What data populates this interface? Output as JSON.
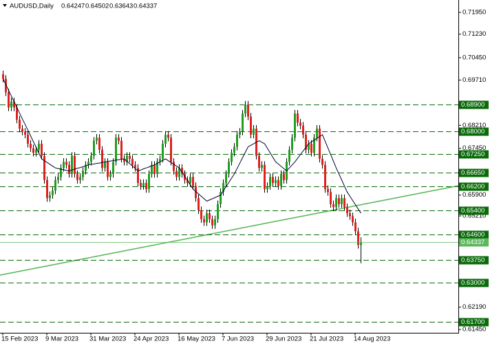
{
  "chart_data": {
    "type": "candlestick",
    "title": "AUDUSD,Daily",
    "categories": [
      "15 Feb 2023",
      null,
      null,
      null,
      null,
      null,
      null,
      null,
      null,
      null,
      null,
      null,
      null,
      null,
      null,
      null,
      "9 Mar 2023",
      null,
      null,
      null,
      null,
      null,
      null,
      null,
      null,
      null,
      null,
      null,
      null,
      null,
      null,
      null,
      "31 Mar 2023",
      null,
      null,
      null,
      null,
      null,
      null,
      null,
      null,
      null,
      null,
      null,
      null,
      null,
      null,
      null,
      "24 Apr 2023",
      null,
      null,
      null,
      null,
      null,
      null,
      null,
      null,
      null,
      null,
      null,
      null,
      null,
      null,
      null,
      "16 May 2023",
      null,
      null,
      null,
      null,
      null,
      null,
      null,
      null,
      null,
      null,
      null,
      null,
      null,
      null,
      null,
      "7 Jun 2023",
      null,
      null,
      null,
      null,
      null,
      null,
      null,
      null,
      null,
      null,
      null,
      null,
      null,
      null,
      null,
      "29 Jun 2023",
      null,
      null,
      null,
      null,
      null,
      null,
      null,
      null,
      null,
      null,
      null,
      null,
      null,
      null,
      null,
      "21 Jul 2023",
      null,
      null,
      null,
      null,
      null,
      null,
      null,
      null,
      null,
      null,
      null,
      null,
      null,
      null,
      null,
      "14 Aug 2023",
      null,
      null
    ],
    "ohlc": [
      [
        0.699,
        0.7002,
        0.6963,
        0.6975
      ],
      [
        0.6975,
        0.6987,
        0.6918,
        0.693
      ],
      [
        0.693,
        0.6942,
        0.6868,
        0.688
      ],
      [
        0.688,
        0.6912,
        0.6868,
        0.69
      ],
      [
        0.69,
        0.6912,
        0.6868,
        0.688
      ],
      [
        0.688,
        0.6892,
        0.6828,
        0.684
      ],
      [
        0.684,
        0.6852,
        0.6798,
        0.681
      ],
      [
        0.681,
        0.6822,
        0.6788,
        0.68
      ],
      [
        0.68,
        0.6812,
        0.6778,
        0.679
      ],
      [
        0.679,
        0.6802,
        0.6748,
        0.676
      ],
      [
        0.676,
        0.6772,
        0.6733,
        0.6745
      ],
      [
        0.6745,
        0.6757,
        0.6718,
        0.673
      ],
      [
        0.673,
        0.6752,
        0.6718,
        0.674
      ],
      [
        0.674,
        0.6772,
        0.6728,
        0.676
      ],
      [
        0.676,
        0.6772,
        0.6708,
        0.672
      ],
      [
        0.672,
        0.6732,
        0.6628,
        0.664
      ],
      [
        0.664,
        0.6652,
        0.6568,
        0.658
      ],
      [
        0.658,
        0.6602,
        0.6568,
        0.659
      ],
      [
        0.659,
        0.6617,
        0.6578,
        0.6605
      ],
      [
        0.6605,
        0.6652,
        0.6593,
        0.664
      ],
      [
        0.664,
        0.6662,
        0.6628,
        0.665
      ],
      [
        0.665,
        0.6692,
        0.6638,
        0.668
      ],
      [
        0.668,
        0.6712,
        0.6668,
        0.67
      ],
      [
        0.67,
        0.6712,
        0.6678,
        0.669
      ],
      [
        0.669,
        0.6702,
        0.6648,
        0.666
      ],
      [
        0.666,
        0.6732,
        0.6648,
        0.672
      ],
      [
        0.672,
        0.6732,
        0.6648,
        0.666
      ],
      [
        0.666,
        0.6672,
        0.6628,
        0.664
      ],
      [
        0.664,
        0.6662,
        0.6628,
        0.665
      ],
      [
        0.665,
        0.6682,
        0.6638,
        0.667
      ],
      [
        0.667,
        0.6702,
        0.6658,
        0.669
      ],
      [
        0.669,
        0.6712,
        0.6678,
        0.67
      ],
      [
        0.67,
        0.6732,
        0.6688,
        0.672
      ],
      [
        0.672,
        0.6782,
        0.6708,
        0.677
      ],
      [
        0.677,
        0.6792,
        0.6758,
        0.678
      ],
      [
        0.678,
        0.6792,
        0.6728,
        0.674
      ],
      [
        0.674,
        0.6752,
        0.6668,
        0.668
      ],
      [
        0.668,
        0.6712,
        0.6668,
        0.67
      ],
      [
        0.67,
        0.6712,
        0.6638,
        0.665
      ],
      [
        0.665,
        0.6672,
        0.6638,
        0.666
      ],
      [
        0.666,
        0.6712,
        0.6648,
        0.67
      ],
      [
        0.67,
        0.6792,
        0.6688,
        0.678
      ],
      [
        0.678,
        0.6792,
        0.6758,
        0.677
      ],
      [
        0.677,
        0.6782,
        0.6698,
        0.671
      ],
      [
        0.671,
        0.6722,
        0.6688,
        0.67
      ],
      [
        0.67,
        0.6732,
        0.6688,
        0.672
      ],
      [
        0.672,
        0.6732,
        0.6698,
        0.671
      ],
      [
        0.671,
        0.6722,
        0.6678,
        0.669
      ],
      [
        0.669,
        0.6702,
        0.6668,
        0.668
      ],
      [
        0.668,
        0.6692,
        0.6618,
        0.663
      ],
      [
        0.663,
        0.6642,
        0.6608,
        0.662
      ],
      [
        0.662,
        0.6642,
        0.6608,
        0.663
      ],
      [
        0.663,
        0.6642,
        0.6598,
        0.661
      ],
      [
        0.661,
        0.6672,
        0.6598,
        0.666
      ],
      [
        0.666,
        0.6702,
        0.6648,
        0.669
      ],
      [
        0.669,
        0.6702,
        0.6648,
        0.666
      ],
      [
        0.666,
        0.6712,
        0.6648,
        0.67
      ],
      [
        0.67,
        0.6722,
        0.6688,
        0.671
      ],
      [
        0.671,
        0.6772,
        0.6698,
        0.676
      ],
      [
        0.676,
        0.6802,
        0.6748,
        0.679
      ],
      [
        0.679,
        0.6802,
        0.6768,
        0.678
      ],
      [
        0.678,
        0.6792,
        0.6688,
        0.67
      ],
      [
        0.67,
        0.6712,
        0.6658,
        0.667
      ],
      [
        0.667,
        0.6682,
        0.6638,
        0.665
      ],
      [
        0.665,
        0.6692,
        0.6638,
        0.668
      ],
      [
        0.668,
        0.6692,
        0.6648,
        0.666
      ],
      [
        0.666,
        0.6672,
        0.6628,
        0.664
      ],
      [
        0.664,
        0.6652,
        0.6618,
        0.663
      ],
      [
        0.663,
        0.6662,
        0.6618,
        0.665
      ],
      [
        0.665,
        0.6662,
        0.6608,
        0.662
      ],
      [
        0.662,
        0.6632,
        0.6568,
        0.658
      ],
      [
        0.658,
        0.6592,
        0.6528,
        0.654
      ],
      [
        0.654,
        0.6552,
        0.6498,
        0.651
      ],
      [
        0.651,
        0.6522,
        0.6488,
        0.65
      ],
      [
        0.65,
        0.6542,
        0.6488,
        0.653
      ],
      [
        0.653,
        0.6542,
        0.6498,
        0.651
      ],
      [
        0.651,
        0.6522,
        0.6478,
        0.649
      ],
      [
        0.649,
        0.6522,
        0.6478,
        0.651
      ],
      [
        0.651,
        0.6572,
        0.6498,
        0.656
      ],
      [
        0.656,
        0.6612,
        0.6548,
        0.66
      ],
      [
        0.66,
        0.6642,
        0.6588,
        0.663
      ],
      [
        0.663,
        0.6672,
        0.6618,
        0.666
      ],
      [
        0.666,
        0.6712,
        0.6648,
        0.67
      ],
      [
        0.67,
        0.6742,
        0.6688,
        0.673
      ],
      [
        0.673,
        0.6762,
        0.6718,
        0.675
      ],
      [
        0.675,
        0.6802,
        0.6738,
        0.679
      ],
      [
        0.679,
        0.6812,
        0.6778,
        0.68
      ],
      [
        0.68,
        0.6872,
        0.6788,
        0.686
      ],
      [
        0.686,
        0.6902,
        0.6848,
        0.689
      ],
      [
        0.689,
        0.6902,
        0.6838,
        0.685
      ],
      [
        0.685,
        0.6862,
        0.6778,
        0.679
      ],
      [
        0.679,
        0.6822,
        0.6778,
        0.681
      ],
      [
        0.681,
        0.6822,
        0.6708,
        0.672
      ],
      [
        0.672,
        0.6732,
        0.6668,
        0.668
      ],
      [
        0.668,
        0.6702,
        0.6668,
        0.669
      ],
      [
        0.669,
        0.6702,
        0.6598,
        0.661
      ],
      [
        0.661,
        0.6632,
        0.6598,
        0.662
      ],
      [
        0.662,
        0.6662,
        0.6608,
        0.665
      ],
      [
        0.665,
        0.6662,
        0.6618,
        0.663
      ],
      [
        0.663,
        0.6652,
        0.6618,
        0.664
      ],
      [
        0.664,
        0.6652,
        0.6608,
        0.662
      ],
      [
        0.662,
        0.6672,
        0.6608,
        0.666
      ],
      [
        0.666,
        0.6672,
        0.6628,
        0.664
      ],
      [
        0.664,
        0.6712,
        0.6628,
        0.67
      ],
      [
        0.67,
        0.6752,
        0.6688,
        0.674
      ],
      [
        0.674,
        0.6792,
        0.6728,
        0.678
      ],
      [
        0.678,
        0.6872,
        0.6768,
        0.686
      ],
      [
        0.686,
        0.6872,
        0.6818,
        0.683
      ],
      [
        0.683,
        0.6842,
        0.6808,
        0.682
      ],
      [
        0.682,
        0.6832,
        0.6778,
        0.679
      ],
      [
        0.679,
        0.6802,
        0.6728,
        0.674
      ],
      [
        0.674,
        0.6772,
        0.6728,
        0.676
      ],
      [
        0.676,
        0.6772,
        0.6718,
        0.673
      ],
      [
        0.673,
        0.6792,
        0.6718,
        0.678
      ],
      [
        0.678,
        0.6822,
        0.6768,
        0.681
      ],
      [
        0.681,
        0.6822,
        0.6698,
        0.671
      ],
      [
        0.671,
        0.6722,
        0.6678,
        0.669
      ],
      [
        0.669,
        0.6702,
        0.6598,
        0.661
      ],
      [
        0.661,
        0.6622,
        0.6588,
        0.66
      ],
      [
        0.66,
        0.6612,
        0.6548,
        0.656
      ],
      [
        0.656,
        0.6572,
        0.6538,
        0.655
      ],
      [
        0.655,
        0.6592,
        0.6538,
        0.658
      ],
      [
        0.658,
        0.6592,
        0.6548,
        0.656
      ],
      [
        0.656,
        0.6592,
        0.6548,
        0.658
      ],
      [
        0.658,
        0.6592,
        0.6538,
        0.655
      ],
      [
        0.655,
        0.6562,
        0.6518,
        0.653
      ],
      [
        0.653,
        0.6542,
        0.6508,
        0.652
      ],
      [
        0.652,
        0.6532,
        0.6488,
        0.65
      ],
      [
        0.65,
        0.6512,
        0.6458,
        0.647
      ],
      [
        0.647,
        0.6482,
        0.6413,
        0.6425
      ],
      [
        0.64247,
        0.64502,
        0.63643,
        0.64337
      ]
    ],
    "ma": [
      0.6975,
      0.6956,
      0.6937,
      0.6918,
      0.6899,
      0.688,
      0.6861,
      0.6842,
      0.6824,
      0.6805,
      0.6786,
      0.6767,
      0.6748,
      0.6729,
      0.671,
      0.6704,
      0.6698,
      0.6692,
      0.6686,
      0.668,
      0.6678,
      0.6676,
      0.6674,
      0.6672,
      0.667,
      0.6673,
      0.6676,
      0.6679,
      0.6681,
      0.6684,
      0.6687,
      0.669,
      0.6692,
      0.6693,
      0.6695,
      0.6696,
      0.6698,
      0.67,
      0.6701,
      0.6703,
      0.6704,
      0.6706,
      0.6707,
      0.6709,
      0.671,
      0.6702,
      0.6694,
      0.6686,
      0.6678,
      0.667,
      0.6673,
      0.6677,
      0.668,
      0.6683,
      0.6687,
      0.669,
      0.6695,
      0.67,
      0.6705,
      0.671,
      0.6704,
      0.6698,
      0.6692,
      0.6686,
      0.668,
      0.6666,
      0.6652,
      0.6638,
      0.6624,
      0.661,
      0.6602,
      0.6594,
      0.6586,
      0.6578,
      0.657,
      0.6574,
      0.6578,
      0.6582,
      0.6586,
      0.659,
      0.6604,
      0.6618,
      0.6632,
      0.6646,
      0.666,
      0.6678,
      0.6696,
      0.6714,
      0.6732,
      0.675,
      0.6755,
      0.676,
      0.6765,
      0.677,
      0.6765,
      0.676,
      0.6745,
      0.673,
      0.6715,
      0.67,
      0.6693,
      0.6685,
      0.6678,
      0.667,
      0.668,
      0.669,
      0.67,
      0.6712,
      0.6724,
      0.6736,
      0.6748,
      0.676,
      0.6766,
      0.6772,
      0.6778,
      0.6784,
      0.679,
      0.6768,
      0.6746,
      0.6724,
      0.6702,
      0.668,
      0.666,
      0.664,
      0.662,
      0.66,
      0.6586,
      0.6572,
      0.6558,
      0.6544,
      0.653
    ],
    "levels": [
      {
        "value": 0.689,
        "label": "0.68900"
      },
      {
        "value": 0.68,
        "label": "0.68000"
      },
      {
        "value": 0.6725,
        "label": "0.67250"
      },
      {
        "value": 0.6665,
        "label": "0.66650"
      },
      {
        "value": 0.662,
        "label": "0.66200"
      },
      {
        "value": 0.654,
        "label": "0.65400"
      },
      {
        "value": 0.646,
        "label": "0.64600"
      },
      {
        "value": 0.6375,
        "label": "0.63750"
      },
      {
        "value": 0.63,
        "label": "0.63000"
      },
      {
        "value": 0.617,
        "label": "0.61700"
      }
    ],
    "trendline": {
      "start": 0.6325,
      "end": 0.6621
    },
    "ylim": [
      0.6134,
      0.7236
    ],
    "yticks": [
      {
        "value": 0.7195,
        "label": "0.71950"
      },
      {
        "value": 0.7123,
        "label": "0.71230"
      },
      {
        "value": 0.7045,
        "label": "0.70450"
      },
      {
        "value": 0.6971,
        "label": "0.69710"
      },
      {
        "value": 0.6821,
        "label": "0.68210"
      },
      {
        "value": 0.6745,
        "label": "0.67450"
      },
      {
        "value": 0.659,
        "label": "0.65900"
      },
      {
        "value": 0.6521,
        "label": "0.65210"
      },
      {
        "value": 0.6219,
        "label": "0.62190"
      },
      {
        "value": 0.6145,
        "label": "0.61450"
      }
    ],
    "colors": {
      "up": "#1e9e1e",
      "down": "#e0201c",
      "wick": "#000000",
      "ma": "#000033",
      "level": "#0b6b0b",
      "current": "#5cb85c",
      "trendline": "#5cb85c"
    }
  }
}
